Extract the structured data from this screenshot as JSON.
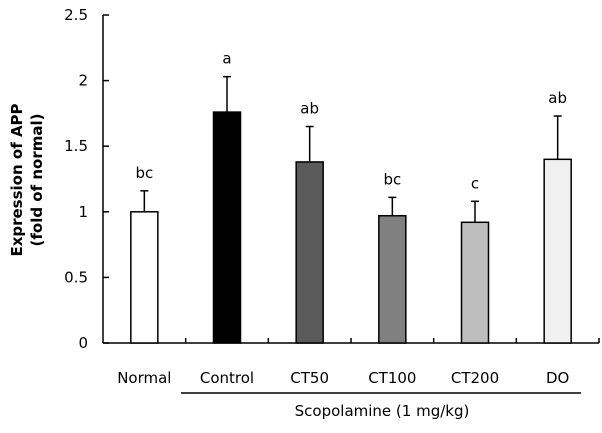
{
  "chart_data": {
    "type": "bar",
    "ylabel": "Expression of APP",
    "ylabel2": "(fold of normal)",
    "ylim": [
      0,
      2.5
    ],
    "yticks": [
      "0",
      "0.5",
      "1",
      "1.5",
      "2",
      "2.5"
    ],
    "categories": [
      "Normal",
      "Control",
      "CT50",
      "CT100",
      "CT200",
      "DO"
    ],
    "values": [
      1.0,
      1.76,
      1.38,
      0.97,
      0.92,
      1.4
    ],
    "errors": [
      0.16,
      0.27,
      0.27,
      0.14,
      0.16,
      0.33
    ],
    "letters": [
      "bc",
      "a",
      "ab",
      "bc",
      "c",
      "ab"
    ],
    "colors": [
      "#ffffff",
      "#000000",
      "#5a5a5a",
      "#808080",
      "#bdbdbd",
      "#f0f0f0"
    ],
    "group_label": "Scopolamine (1 mg/kg)",
    "grid": false
  }
}
